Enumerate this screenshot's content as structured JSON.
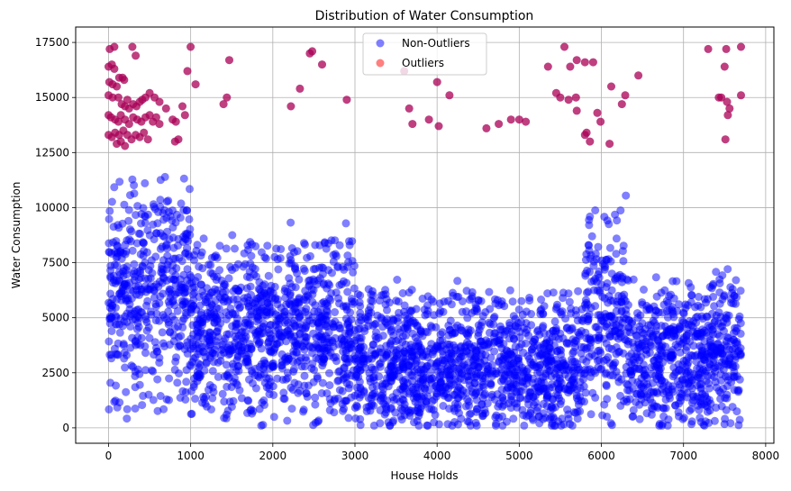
{
  "chart_data": {
    "type": "scatter",
    "title": "Distribution of Water Consumption",
    "xlabel": "House Holds",
    "ylabel": "Water Consumption",
    "xlim": [
      -400,
      8100
    ],
    "ylim": [
      -700,
      18200
    ],
    "xticks": [
      0,
      1000,
      2000,
      3000,
      4000,
      5000,
      6000,
      7000,
      8000
    ],
    "xtick_labels": [
      "0",
      "1000",
      "2000",
      "3000",
      "4000",
      "5000",
      "6000",
      "7000",
      "8000"
    ],
    "yticks": [
      0,
      2500,
      5000,
      7500,
      10000,
      12500,
      15000,
      17500
    ],
    "ytick_labels": [
      "0",
      "2500",
      "5000",
      "7500",
      "10000",
      "12500",
      "15000",
      "17500"
    ],
    "grid": true,
    "legend_position": "top-center",
    "series": [
      {
        "name": "Non-Outliers",
        "color": "#0000ff",
        "alpha": 0.5,
        "x_range": [
          0,
          7700
        ],
        "y_range": [
          100,
          12800
        ],
        "approx_count": 7700,
        "density_profile": [
          {
            "x_from": 0,
            "x_to": 1000,
            "y_center": 6500,
            "y_spread": 3500
          },
          {
            "x_from": 1000,
            "x_to": 3000,
            "y_center": 4500,
            "y_spread": 3000
          },
          {
            "x_from": 3000,
            "x_to": 5800,
            "y_center": 2800,
            "y_spread": 2500
          },
          {
            "x_from": 5800,
            "x_to": 6300,
            "y_center": 5000,
            "y_spread": 3500
          },
          {
            "x_from": 6300,
            "x_to": 7700,
            "y_center": 3300,
            "y_spread": 2600
          }
        ]
      },
      {
        "name": "Outliers",
        "color": "#ff0000",
        "alpha": 0.5,
        "points": [
          [
            15,
            17200
          ],
          [
            70,
            17300
          ],
          [
            290,
            17300
          ],
          [
            330,
            16900
          ],
          [
            0,
            16400
          ],
          [
            40,
            16500
          ],
          [
            70,
            16300
          ],
          [
            10,
            15700
          ],
          [
            50,
            15600
          ],
          [
            100,
            15500
          ],
          [
            130,
            15900
          ],
          [
            170,
            15900
          ],
          [
            190,
            15800
          ],
          [
            0,
            15100
          ],
          [
            50,
            15000
          ],
          [
            120,
            15000
          ],
          [
            160,
            14700
          ],
          [
            200,
            14600
          ],
          [
            230,
            14900
          ],
          [
            250,
            14500
          ],
          [
            300,
            14700
          ],
          [
            340,
            14600
          ],
          [
            380,
            14800
          ],
          [
            410,
            14900
          ],
          [
            0,
            14200
          ],
          [
            30,
            14100
          ],
          [
            80,
            14000
          ],
          [
            120,
            13900
          ],
          [
            150,
            14200
          ],
          [
            200,
            14000
          ],
          [
            250,
            13800
          ],
          [
            300,
            14100
          ],
          [
            350,
            14000
          ],
          [
            400,
            13900
          ],
          [
            450,
            14100
          ],
          [
            0,
            13300
          ],
          [
            40,
            13200
          ],
          [
            80,
            13400
          ],
          [
            130,
            13300
          ],
          [
            180,
            13500
          ],
          [
            230,
            13300
          ],
          [
            280,
            13100
          ],
          [
            330,
            13300
          ],
          [
            380,
            13200
          ],
          [
            430,
            13400
          ],
          [
            480,
            13100
          ],
          [
            100,
            12900
          ],
          [
            150,
            13000
          ],
          [
            200,
            12800
          ],
          [
            500,
            14200
          ],
          [
            540,
            13900
          ],
          [
            580,
            14100
          ],
          [
            620,
            13800
          ],
          [
            450,
            15000
          ],
          [
            500,
            15200
          ],
          [
            560,
            15000
          ],
          [
            620,
            14800
          ],
          [
            700,
            14500
          ],
          [
            780,
            14000
          ],
          [
            820,
            13900
          ],
          [
            850,
            13100
          ],
          [
            810,
            13000
          ],
          [
            900,
            14600
          ],
          [
            930,
            14200
          ],
          [
            960,
            16200
          ],
          [
            1000,
            17300
          ],
          [
            1060,
            15600
          ],
          [
            1470,
            16700
          ],
          [
            1440,
            15000
          ],
          [
            1400,
            14700
          ],
          [
            2220,
            14600
          ],
          [
            2330,
            15400
          ],
          [
            2450,
            17000
          ],
          [
            2480,
            17100
          ],
          [
            2600,
            16500
          ],
          [
            2900,
            14900
          ],
          [
            3600,
            16200
          ],
          [
            3700,
            13800
          ],
          [
            3660,
            14500
          ],
          [
            3900,
            14000
          ],
          [
            4000,
            15700
          ],
          [
            4020,
            13700
          ],
          [
            4150,
            15100
          ],
          [
            4600,
            13600
          ],
          [
            4750,
            13800
          ],
          [
            4900,
            14000
          ],
          [
            5000,
            14000
          ],
          [
            5080,
            13900
          ],
          [
            5350,
            16400
          ],
          [
            5450,
            15200
          ],
          [
            5500,
            15000
          ],
          [
            5550,
            17300
          ],
          [
            5600,
            14900
          ],
          [
            5620,
            16400
          ],
          [
            5700,
            16700
          ],
          [
            5690,
            15000
          ],
          [
            5700,
            14400
          ],
          [
            5800,
            16600
          ],
          [
            5800,
            13300
          ],
          [
            5820,
            13400
          ],
          [
            5860,
            13000
          ],
          [
            5900,
            16600
          ],
          [
            5950,
            14300
          ],
          [
            5990,
            13900
          ],
          [
            6100,
            12900
          ],
          [
            6120,
            15500
          ],
          [
            6290,
            15100
          ],
          [
            6450,
            16000
          ],
          [
            6250,
            14700
          ],
          [
            7300,
            17200
          ],
          [
            7430,
            15000
          ],
          [
            7500,
            16400
          ],
          [
            7530,
            14800
          ],
          [
            7560,
            14500
          ],
          [
            7540,
            14200
          ],
          [
            7510,
            13100
          ],
          [
            7460,
            15000
          ],
          [
            7700,
            17300
          ],
          [
            7700,
            15100
          ],
          [
            7520,
            17200
          ]
        ]
      }
    ],
    "legend": [
      {
        "label": "Non-Outliers",
        "color": "#0000ff"
      },
      {
        "label": "Outliers",
        "color": "#ff0000"
      }
    ]
  }
}
